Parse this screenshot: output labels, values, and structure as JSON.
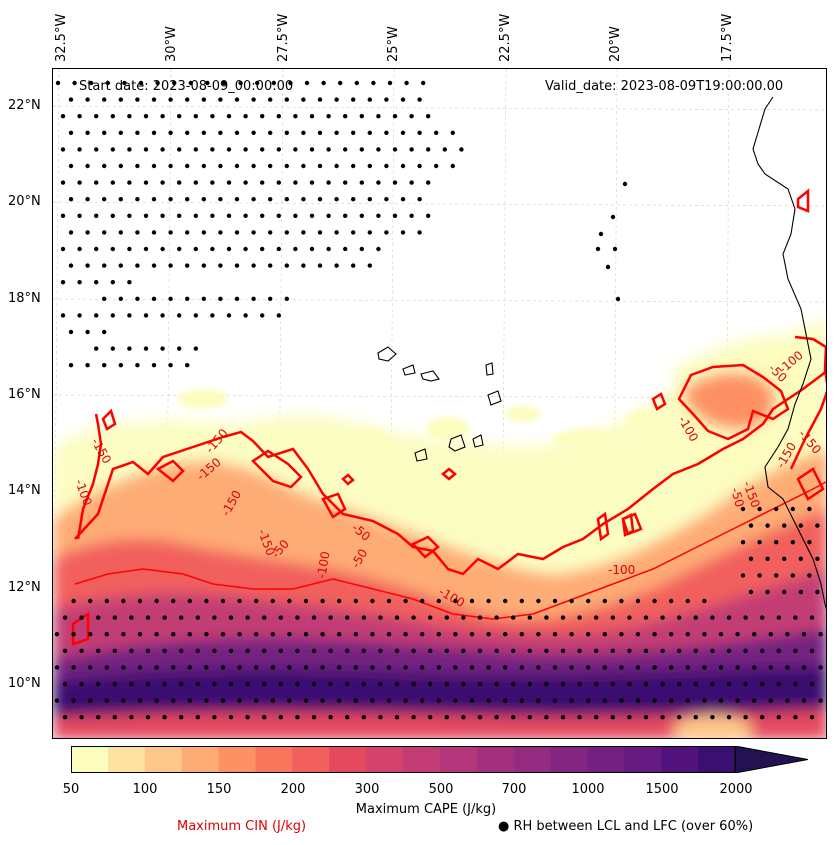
{
  "header": {
    "start_date": "Start date: 2023-08-09_00:00:00",
    "valid_date": "Valid_date: 2023-08-09T19:00:00.00"
  },
  "map": {
    "longitude_labels": [
      "32.5°W",
      "30°W",
      "27.5°W",
      "25°W",
      "22.5°W",
      "20°W",
      "17.5°W"
    ],
    "latitude_labels": [
      "22°N",
      "20°N",
      "18°N",
      "16°N",
      "14°N",
      "12°N",
      "10°N"
    ],
    "cin_contour_labels": [
      "-150",
      "-100",
      "-150",
      "-150",
      "-150",
      "-50",
      "-100",
      "-150",
      "-50",
      "-100",
      "-50",
      "-100",
      "-150",
      "-50",
      "-100",
      "-150",
      "-50",
      "-150",
      "-100"
    ],
    "colors": {
      "cin_contour": "#ff0000",
      "coastline": "#000000",
      "rh_dots": "#000000"
    }
  },
  "colorbar": {
    "label": "Maximum CAPE (J/kg)",
    "tick_labels": [
      "50",
      "100",
      "150",
      "200",
      "300",
      "500",
      "700",
      "1000",
      "1500",
      "2000"
    ],
    "colors": [
      "#fcfdbf",
      "#fde2a2",
      "#fec78a",
      "#feac76",
      "#fd9163",
      "#f8765c",
      "#f1605d",
      "#e4495f",
      "#d3436e",
      "#c33c74",
      "#b3367a",
      "#a3307e",
      "#932b80",
      "#832681",
      "#732181",
      "#641a80",
      "#51127c",
      "#3b0f70",
      "#231151"
    ],
    "extend": "max"
  },
  "legend": {
    "cin_label": "Maximum CIN (J/kg)",
    "rh_label": "RH between LCL and LFC (over 60%)",
    "rh_marker": "●"
  }
}
